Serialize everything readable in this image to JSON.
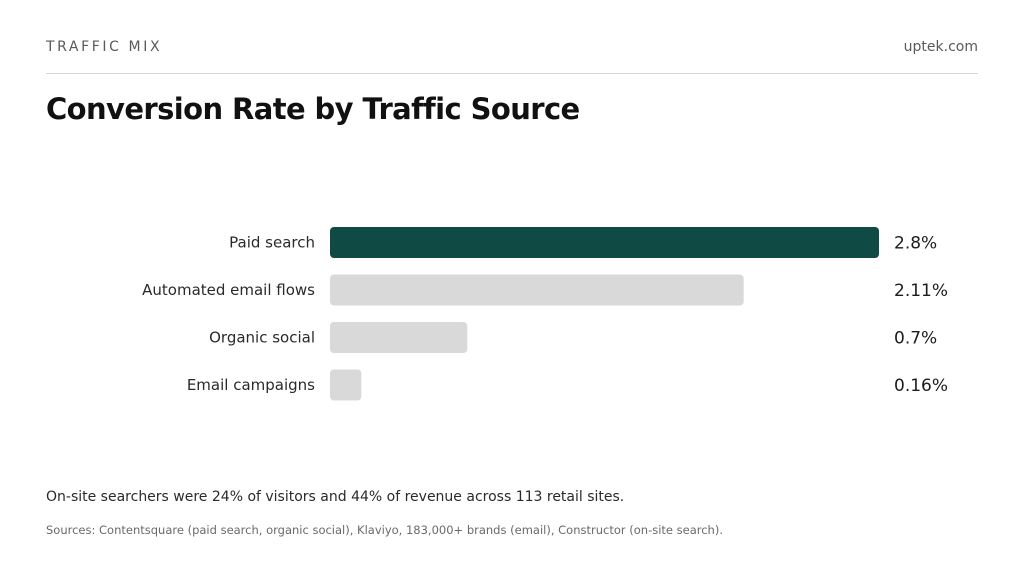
{
  "header": {
    "kicker": "TRAFFIC MIX",
    "brand": "uptek.com"
  },
  "chart_data": {
    "type": "bar",
    "orientation": "horizontal",
    "title": "Conversion Rate by Traffic Source",
    "categories": [
      "Paid search",
      "Automated email flows",
      "Organic social",
      "Email campaigns"
    ],
    "values": [
      2.8,
      2.11,
      0.7,
      0.16
    ],
    "value_labels": [
      "2.8%",
      "2.11%",
      "0.7%",
      "0.16%"
    ],
    "xlim": [
      0,
      2.8
    ],
    "highlight_index": 0,
    "colors": {
      "highlight": "#0f4a45",
      "default": "#d9d9d9"
    },
    "grid": false,
    "legend": "none"
  },
  "footer": {
    "note": "On-site searchers were 24% of visitors and 44% of revenue across 113 retail sites.",
    "sources": "Sources: Contentsquare (paid search, organic social), Klaviyo, 183,000+ brands (email), Constructor (on-site search)."
  }
}
